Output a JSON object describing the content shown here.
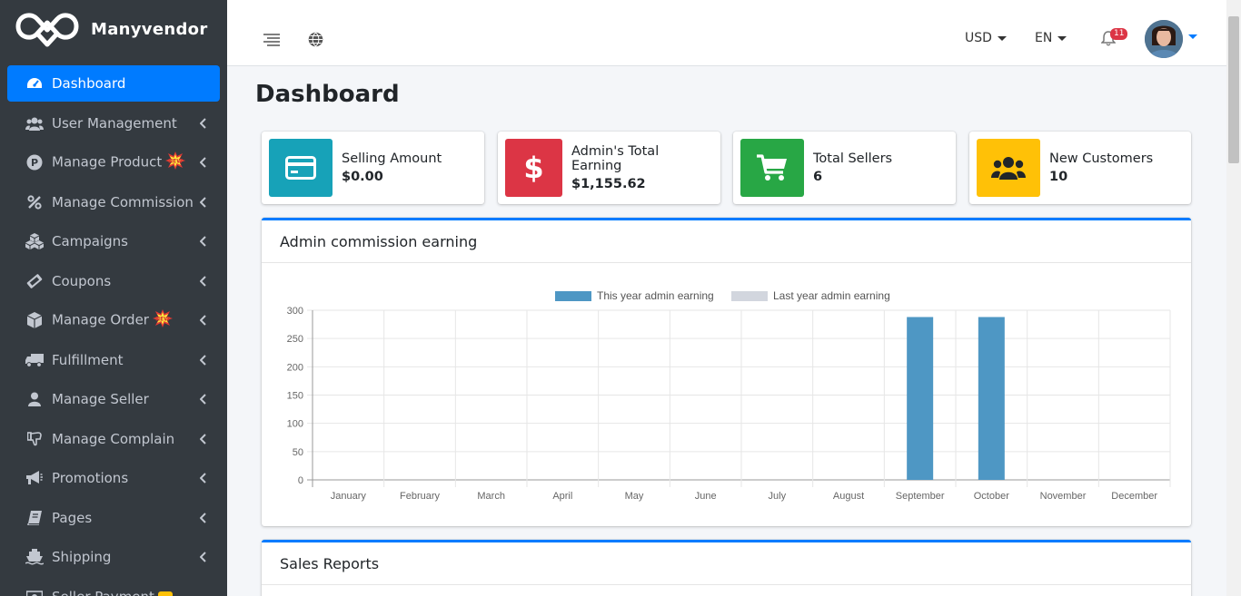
{
  "brand": {
    "name": "Manyvendor"
  },
  "sidebar": {
    "items": [
      {
        "label": "Dashboard",
        "icon": "tachometer-icon"
      },
      {
        "label": "User Management",
        "icon": "users-icon"
      },
      {
        "label": "Manage Product",
        "icon": "product-p-icon"
      },
      {
        "label": "Manage Commission",
        "icon": "percent-icon"
      },
      {
        "label": "Campaigns",
        "icon": "cubes-icon"
      },
      {
        "label": "Coupons",
        "icon": "ticket-icon"
      },
      {
        "label": "Manage Order",
        "icon": "box-icon"
      },
      {
        "label": "Fulfillment",
        "icon": "truck-icon"
      },
      {
        "label": "Manage Seller",
        "icon": "user-icon"
      },
      {
        "label": "Manage Complain",
        "icon": "thumbs-down-icon"
      },
      {
        "label": "Promotions",
        "icon": "bullhorn-icon"
      },
      {
        "label": "Pages",
        "icon": "book-icon"
      },
      {
        "label": "Shipping",
        "icon": "ship-icon"
      },
      {
        "label": "Seller Payment",
        "icon": "money-icon"
      }
    ],
    "new_badge": "NEW"
  },
  "header": {
    "currency": "USD",
    "language": "EN",
    "notifications": "11"
  },
  "page": {
    "title": "Dashboard"
  },
  "stats": [
    {
      "title": "Selling Amount",
      "value": "$0.00",
      "color": "#17a2b8",
      "icon": "credit-card-icon"
    },
    {
      "title": "Admin's Total Earning",
      "value": "$1,155.62",
      "color": "#dc3545",
      "icon": "dollar-icon"
    },
    {
      "title": "Total Sellers",
      "value": "6",
      "color": "#28a745",
      "icon": "cart-icon"
    },
    {
      "title": "New Customers",
      "value": "10",
      "color": "#ffc107",
      "icon": "users-icon"
    }
  ],
  "commission_card": {
    "title": "Admin commission earning"
  },
  "sales_card": {
    "title": "Sales Reports"
  },
  "chart_data": {
    "type": "bar",
    "categories": [
      "January",
      "February",
      "March",
      "April",
      "May",
      "June",
      "July",
      "August",
      "September",
      "October",
      "November",
      "December"
    ],
    "series": [
      {
        "name": "This year admin earning",
        "color": "#4e97c4",
        "values": [
          0,
          0,
          0,
          0,
          0,
          0,
          0,
          0,
          288,
          288,
          0,
          0
        ]
      },
      {
        "name": "Last year admin earning",
        "color": "#d2d6de",
        "values": [
          0,
          0,
          0,
          0,
          0,
          0,
          0,
          0,
          0,
          0,
          0,
          0
        ]
      }
    ],
    "yticks": [
      "0",
      "50",
      "100",
      "150",
      "200",
      "250",
      "300"
    ],
    "ylim": [
      0,
      300
    ],
    "legend": "top",
    "grid": true
  }
}
